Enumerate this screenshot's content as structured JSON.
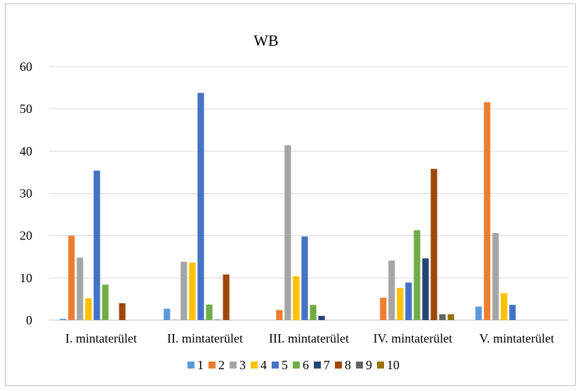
{
  "chart_data": {
    "type": "bar",
    "title": "WB",
    "xlabel": "",
    "ylabel": "",
    "ylim": [
      0,
      60
    ],
    "yticks": [
      0,
      10,
      20,
      30,
      40,
      50,
      60
    ],
    "grid": true,
    "legend_position": "bottom",
    "categories": [
      "I. mintaterület",
      "II. mintaterület",
      "III. mintaterület",
      "IV. mintaterület",
      "V. mintaterület"
    ],
    "series": [
      {
        "name": "1",
        "color": "#5B9BD5",
        "values": [
          0.3,
          2.7,
          0,
          0,
          3.2
        ]
      },
      {
        "name": "2",
        "color": "#ED7D31",
        "values": [
          20.0,
          0.1,
          2.4,
          5.3,
          51.6
        ]
      },
      {
        "name": "3",
        "color": "#A5A5A5",
        "values": [
          14.8,
          13.8,
          41.4,
          14.1,
          20.6
        ]
      },
      {
        "name": "4",
        "color": "#FFC000",
        "values": [
          5.2,
          13.6,
          10.4,
          7.6,
          6.4
        ]
      },
      {
        "name": "5",
        "color": "#4472C4",
        "values": [
          35.4,
          53.8,
          19.8,
          8.9,
          3.6
        ]
      },
      {
        "name": "6",
        "color": "#70AD47",
        "values": [
          8.4,
          3.7,
          3.6,
          21.3,
          0
        ]
      },
      {
        "name": "7",
        "color": "#264478",
        "values": [
          0,
          0.1,
          1.0,
          14.6,
          0
        ]
      },
      {
        "name": "8",
        "color": "#9E480E",
        "values": [
          4.0,
          10.8,
          0,
          35.8,
          0
        ]
      },
      {
        "name": "9",
        "color": "#636363",
        "values": [
          0,
          0,
          0,
          1.4,
          0
        ]
      },
      {
        "name": "10",
        "color": "#997300",
        "values": [
          0,
          0,
          0,
          1.4,
          0
        ]
      }
    ]
  }
}
